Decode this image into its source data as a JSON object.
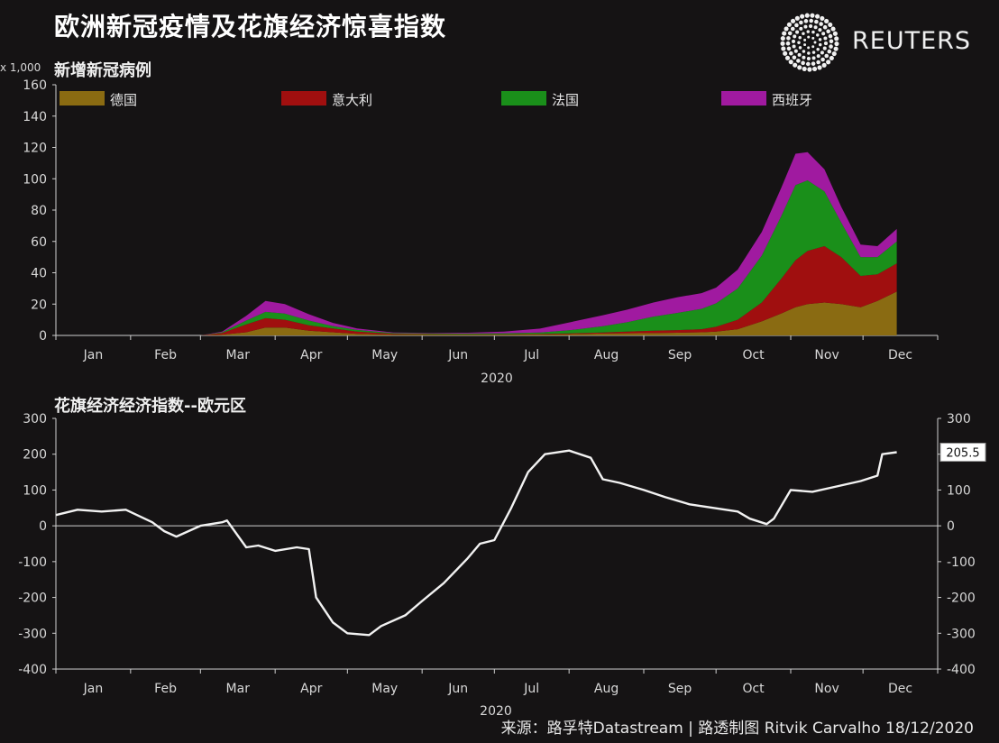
{
  "title": "欧洲新冠疫情及花旗经济惊喜指数",
  "brand": "REUTERS",
  "source": "来源：路孚特Datastream | 路透制图 Ritvik Carvalho 18/12/2020",
  "colors": {
    "background": "#151314",
    "germany": "#8a6b12",
    "italy": "#a00f0f",
    "france": "#1a8f1a",
    "spain": "#a01aa0",
    "line": "#f2f2f2"
  },
  "chart_data": [
    {
      "type": "area",
      "stacked": true,
      "title": "新增新冠病例",
      "unit_label": "x 1,000",
      "xlabel": "2020",
      "ylim": [
        0,
        160
      ],
      "yticks": [
        0,
        20,
        40,
        60,
        80,
        100,
        120,
        140,
        160
      ],
      "months": [
        "Jan",
        "Feb",
        "Mar",
        "Apr",
        "May",
        "Jun",
        "Jul",
        "Aug",
        "Sep",
        "Oct",
        "Nov",
        "Dec"
      ],
      "grid": false,
      "legend_placement": "top",
      "x": [
        "2020-01-01",
        "2020-02-01",
        "2020-03-01",
        "2020-03-10",
        "2020-03-20",
        "2020-03-28",
        "2020-04-05",
        "2020-04-15",
        "2020-04-25",
        "2020-05-05",
        "2020-05-20",
        "2020-06-05",
        "2020-06-20",
        "2020-07-05",
        "2020-07-20",
        "2020-08-01",
        "2020-08-15",
        "2020-08-25",
        "2020-09-05",
        "2020-09-15",
        "2020-09-25",
        "2020-10-01",
        "2020-10-10",
        "2020-10-20",
        "2020-10-28",
        "2020-11-03",
        "2020-11-08",
        "2020-11-15",
        "2020-11-22",
        "2020-11-30",
        "2020-12-07",
        "2020-12-15"
      ],
      "series": [
        {
          "name": "德国",
          "values": [
            0,
            0,
            0,
            0.5,
            2,
            5,
            5,
            3,
            2,
            1,
            0.5,
            0.5,
            0.5,
            0.5,
            0.6,
            0.8,
            1.2,
            1.4,
            1.5,
            1.7,
            2,
            2.5,
            4,
            9,
            14,
            18,
            20,
            21,
            20,
            18,
            22,
            28
          ]
        },
        {
          "name": "意大利",
          "values": [
            0,
            0,
            0,
            1,
            5,
            6,
            5,
            3.5,
            2.5,
            1.5,
            0.5,
            0.3,
            0.2,
            0.2,
            0.3,
            0.5,
            0.7,
            1,
            1.5,
            1.7,
            2,
            3,
            6,
            12,
            22,
            30,
            34,
            36,
            30,
            20,
            17,
            18
          ]
        },
        {
          "name": "法国",
          "values": [
            0,
            0,
            0,
            0.5,
            2.5,
            4,
            4,
            3,
            1.5,
            1,
            0.5,
            0.5,
            0.5,
            0.7,
            1,
            2,
            4,
            6,
            9,
            11,
            13,
            15,
            20,
            30,
            40,
            48,
            45,
            35,
            22,
            12,
            11,
            14
          ]
        },
        {
          "name": "西班牙",
          "values": [
            0,
            0,
            0,
            0.5,
            3,
            7,
            6,
            4,
            2,
            1,
            0.4,
            0.3,
            0.5,
            1,
            2.5,
            5,
            7,
            8,
            9,
            10,
            10,
            10,
            12,
            15,
            18,
            20,
            18,
            14,
            10,
            8,
            7,
            8
          ]
        }
      ]
    },
    {
      "type": "line",
      "title": "花旗经济经济指数--欧元区",
      "xlabel": "2020",
      "ylim": [
        -400,
        300
      ],
      "yticks": [
        -400,
        -300,
        -200,
        -100,
        0,
        100,
        200,
        300
      ],
      "months": [
        "Jan",
        "Feb",
        "Mar",
        "Apr",
        "May",
        "Jun",
        "Jul",
        "Aug",
        "Sep",
        "Oct",
        "Nov",
        "Dec"
      ],
      "last_value_label": "205.5",
      "x": [
        "2020-01-01",
        "2020-01-10",
        "2020-01-20",
        "2020-01-30",
        "2020-02-10",
        "2020-02-15",
        "2020-02-20",
        "2020-03-01",
        "2020-03-10",
        "2020-03-12",
        "2020-03-20",
        "2020-03-25",
        "2020-04-01",
        "2020-04-10",
        "2020-04-15",
        "2020-04-18",
        "2020-04-25",
        "2020-05-01",
        "2020-05-10",
        "2020-05-15",
        "2020-05-25",
        "2020-06-01",
        "2020-06-10",
        "2020-06-20",
        "2020-06-25",
        "2020-07-01",
        "2020-07-08",
        "2020-07-15",
        "2020-07-22",
        "2020-08-01",
        "2020-08-10",
        "2020-08-15",
        "2020-08-22",
        "2020-09-01",
        "2020-09-10",
        "2020-09-20",
        "2020-09-30",
        "2020-10-10",
        "2020-10-15",
        "2020-10-22",
        "2020-10-25",
        "2020-11-01",
        "2020-11-10",
        "2020-11-20",
        "2020-11-30",
        "2020-12-07",
        "2020-12-09",
        "2020-12-15"
      ],
      "values": [
        30,
        45,
        40,
        45,
        10,
        -15,
        -30,
        0,
        10,
        15,
        -60,
        -55,
        -70,
        -60,
        -65,
        -200,
        -270,
        -300,
        -305,
        -280,
        -250,
        -210,
        -160,
        -90,
        -50,
        -40,
        50,
        150,
        200,
        210,
        190,
        130,
        120,
        100,
        80,
        60,
        50,
        40,
        20,
        5,
        20,
        100,
        95,
        110,
        125,
        140,
        200,
        205.5
      ]
    }
  ]
}
